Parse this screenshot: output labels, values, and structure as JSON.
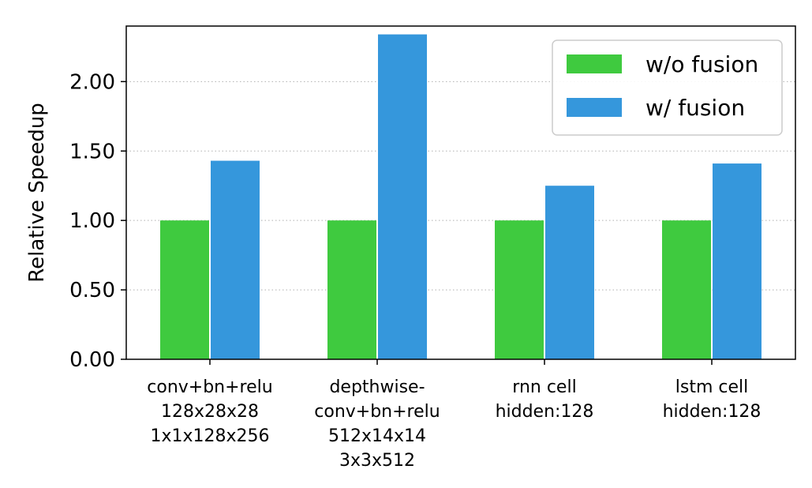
{
  "chart_data": {
    "type": "bar",
    "title": "",
    "xlabel": "",
    "ylabel": "Relative Speedup",
    "ylim": [
      0,
      2.4
    ],
    "yticks": [
      0.0,
      0.5,
      1.0,
      1.5,
      2.0
    ],
    "ytick_labels": [
      "0.00",
      "0.50",
      "1.00",
      "1.50",
      "2.00"
    ],
    "grid": "horizontal-dotted",
    "legend_position": "top-right",
    "categories": [
      [
        "conv+bn+relu",
        "128x28x28",
        "1x1x128x256"
      ],
      [
        "depthwise-",
        "conv+bn+relu",
        "512x14x14",
        "3x3x512"
      ],
      [
        "rnn cell",
        "hidden:128"
      ],
      [
        "lstm cell",
        "hidden:128"
      ]
    ],
    "series": [
      {
        "name": "w/o fusion",
        "color": "#3fca3f",
        "values": [
          1.0,
          1.0,
          1.0,
          1.0
        ]
      },
      {
        "name": "w/ fusion",
        "color": "#3597dc",
        "values": [
          1.43,
          2.34,
          1.25,
          1.41
        ]
      }
    ]
  }
}
